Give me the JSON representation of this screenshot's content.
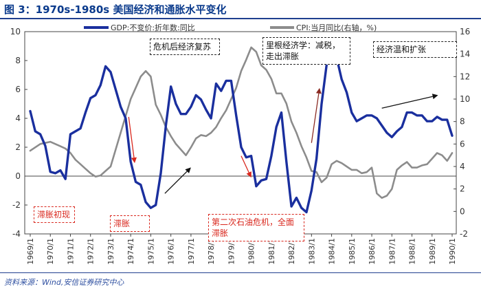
{
  "title": "图 3：1970s-1980s 美国经济和通胀水平变化",
  "source": "资料来源：Wind,安信证券研究中心",
  "colors": {
    "gdp": "#1a2f9e",
    "cpi": "#8c8c8c",
    "red": "#d9261c",
    "black": "#111111"
  },
  "chart_data": {
    "type": "line",
    "title": "1970s-1980s 美国经济和通胀水平变化",
    "left_axis": {
      "ylim": [
        -4,
        10
      ],
      "ticks": [
        "-4",
        "-2",
        "0",
        "2",
        "4",
        "6",
        "8",
        "10"
      ]
    },
    "right_axis": {
      "ylim": [
        -2,
        16
      ],
      "ticks": [
        "-2",
        "0",
        "2",
        "4",
        "6",
        "8",
        "10",
        "12",
        "14",
        "16"
      ]
    },
    "x_range": [
      1969.0,
      1990.0
    ],
    "x_ticks": [
      "1969/1",
      "1970/1",
      "1971/1",
      "1972/1",
      "1973/1",
      "1974/1",
      "1975/1",
      "1976/1",
      "1977/1",
      "1978/1",
      "1979/1",
      "1980/1",
      "1981/1",
      "1982/1",
      "1983/1",
      "1984/1",
      "1985/1",
      "1986/1",
      "1987/1",
      "1988/1",
      "1989/1",
      "1990/1"
    ],
    "legend": {
      "position": "top",
      "entries": [
        "GDP:不变价:折年数:同比",
        "CPI:当月同比(右轴，%)"
      ]
    },
    "series": [
      {
        "name": "GDP:不变价:折年数:同比",
        "axis": "left",
        "x": [
          1969.0,
          1969.25,
          1969.5,
          1969.75,
          1970.0,
          1970.25,
          1970.5,
          1970.75,
          1971.0,
          1971.25,
          1971.5,
          1971.75,
          1972.0,
          1972.25,
          1972.5,
          1972.75,
          1973.0,
          1973.25,
          1973.5,
          1973.75,
          1974.0,
          1974.25,
          1974.5,
          1974.75,
          1975.0,
          1975.25,
          1975.5,
          1975.75,
          1976.0,
          1976.25,
          1976.5,
          1976.75,
          1977.0,
          1977.25,
          1977.5,
          1977.75,
          1978.0,
          1978.25,
          1978.5,
          1978.75,
          1979.0,
          1979.25,
          1979.5,
          1979.75,
          1980.0,
          1980.25,
          1980.5,
          1980.75,
          1981.0,
          1981.25,
          1981.5,
          1981.75,
          1982.0,
          1982.25,
          1982.5,
          1982.75,
          1983.0,
          1983.25,
          1983.5,
          1983.75,
          1984.0,
          1984.25,
          1984.5,
          1984.75,
          1985.0,
          1985.25,
          1985.5,
          1985.75,
          1986.0,
          1986.25,
          1986.5,
          1986.75,
          1987.0,
          1987.25,
          1987.5,
          1987.75,
          1988.0,
          1988.25,
          1988.5,
          1988.75,
          1989.0,
          1989.25,
          1989.5,
          1989.75,
          1990.0
        ],
        "values": [
          4.5,
          3.1,
          2.9,
          2.1,
          0.3,
          0.2,
          0.4,
          -0.2,
          2.9,
          3.1,
          3.3,
          4.4,
          5.4,
          5.6,
          6.3,
          7.6,
          7.2,
          6.0,
          4.8,
          4.0,
          1.0,
          -0.4,
          -0.6,
          -1.8,
          -2.2,
          -2.0,
          0.2,
          3.5,
          6.2,
          5.0,
          4.3,
          4.3,
          4.8,
          5.6,
          5.3,
          4.6,
          4.0,
          6.4,
          5.9,
          6.6,
          6.6,
          4.2,
          2.0,
          1.3,
          1.4,
          -0.7,
          -0.3,
          -0.2,
          1.4,
          3.4,
          4.4,
          1.0,
          -2.1,
          -1.5,
          -2.2,
          -2.5,
          -1.0,
          1.2,
          5.0,
          7.7,
          8.6,
          8.2,
          6.7,
          5.8,
          4.4,
          3.8,
          4.0,
          4.2,
          4.2,
          4.0,
          3.5,
          3.0,
          2.7,
          3.1,
          3.4,
          4.4,
          4.4,
          4.2,
          4.2,
          3.8,
          3.8,
          4.1,
          3.9,
          3.9,
          2.8
        ]
      },
      {
        "name": "CPI:当月同比(右轴，%)",
        "axis": "right",
        "x": [
          1969.0,
          1969.25,
          1969.5,
          1969.75,
          1970.0,
          1970.25,
          1970.5,
          1970.75,
          1971.0,
          1971.25,
          1971.5,
          1971.75,
          1972.0,
          1972.25,
          1972.5,
          1972.75,
          1973.0,
          1973.25,
          1973.5,
          1973.75,
          1974.0,
          1974.25,
          1974.5,
          1974.75,
          1975.0,
          1975.25,
          1975.5,
          1975.75,
          1976.0,
          1976.25,
          1976.5,
          1976.75,
          1977.0,
          1977.25,
          1977.5,
          1977.75,
          1978.0,
          1978.25,
          1978.5,
          1978.75,
          1979.0,
          1979.25,
          1979.5,
          1979.75,
          1980.0,
          1980.25,
          1980.5,
          1980.75,
          1981.0,
          1981.25,
          1981.5,
          1981.75,
          1982.0,
          1982.25,
          1982.5,
          1982.75,
          1983.0,
          1983.25,
          1983.5,
          1983.75,
          1984.0,
          1984.25,
          1984.5,
          1984.75,
          1985.0,
          1985.25,
          1985.5,
          1985.75,
          1986.0,
          1986.25,
          1986.5,
          1986.75,
          1987.0,
          1987.25,
          1987.5,
          1987.75,
          1988.0,
          1988.25,
          1988.5,
          1988.75,
          1989.0,
          1989.25,
          1989.5,
          1989.75,
          1990.0
        ],
        "values": [
          5.4,
          5.7,
          6.0,
          6.1,
          6.2,
          6.0,
          5.8,
          5.6,
          5.2,
          4.6,
          4.2,
          3.8,
          3.4,
          3.1,
          3.2,
          3.6,
          4.0,
          5.5,
          7.0,
          8.5,
          10.0,
          11.0,
          12.0,
          12.5,
          12.0,
          9.5,
          8.6,
          7.5,
          6.7,
          6.0,
          5.5,
          5.0,
          5.7,
          6.5,
          6.8,
          6.7,
          7.0,
          7.5,
          8.3,
          9.0,
          10.0,
          11.0,
          12.5,
          13.5,
          14.6,
          14.2,
          13.0,
          12.6,
          11.8,
          10.5,
          10.5,
          9.6,
          8.0,
          7.0,
          5.8,
          4.8,
          3.6,
          3.5,
          2.6,
          3.0,
          4.2,
          4.5,
          4.3,
          4.0,
          3.7,
          3.7,
          3.4,
          3.5,
          3.9,
          1.6,
          1.2,
          1.4,
          2.0,
          3.7,
          4.1,
          4.4,
          3.9,
          3.9,
          4.1,
          4.2,
          4.7,
          5.2,
          5.0,
          4.5,
          5.2
        ]
      }
    ],
    "annotations": [
      {
        "text": "危机后经济复苏",
        "color": "black"
      },
      {
        "text": "里根经济学：减税，走出滞胀",
        "color": "black"
      },
      {
        "text": "经济温和扩张",
        "color": "black"
      },
      {
        "text": "滞胀初现",
        "color": "red"
      },
      {
        "text": "滞胀",
        "color": "red"
      },
      {
        "text": "第二次石油危机，全面滞胀",
        "color": "red"
      }
    ]
  }
}
